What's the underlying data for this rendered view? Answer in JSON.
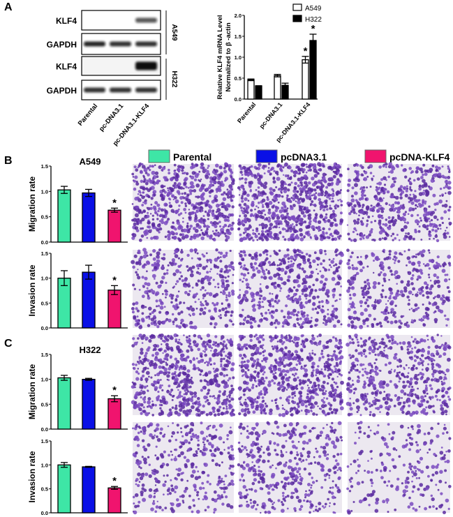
{
  "panel_letters": {
    "a": "A",
    "b": "B",
    "c": "C"
  },
  "colors": {
    "parental": "#3ee6a6",
    "pcdna31": "#0a10e6",
    "pcdna_klf4": "#f0146e",
    "stain": "#6a3aa8"
  },
  "western_blot": {
    "rows": [
      {
        "label": "KLF4",
        "cell_line": "A549",
        "band_intensity": [
          0,
          0,
          0.7
        ]
      },
      {
        "label": "GAPDH",
        "cell_line": "A549",
        "band_intensity": [
          0.9,
          0.85,
          0.85
        ]
      },
      {
        "label": "KLF4",
        "cell_line": "H322",
        "band_intensity": [
          0,
          0,
          1
        ]
      },
      {
        "label": "GAPDH",
        "cell_line": "H322",
        "band_intensity": [
          0.85,
          0.85,
          0.85
        ]
      }
    ],
    "cell_lines": [
      "A549",
      "H322"
    ],
    "lanes": [
      "Parental",
      "pc-DNA3.1",
      "pc-DNA3.1-KLF4"
    ]
  },
  "legend": [
    "Parental",
    "pcDNA3.1",
    "pcDNA-KLF4"
  ],
  "chart_data": [
    {
      "type": "bar",
      "ylabel": "Relative KLF4 mRNA Level\nNormalized to β -actin",
      "categories": [
        "Parental",
        "pc-DNA3.1",
        "pc-DNA3.1-KLF4"
      ],
      "ylim": [
        0,
        2.0
      ],
      "yticks": [
        "0.0",
        "0.5",
        "1.0",
        "1.5",
        "2.0"
      ],
      "legend_position": "top-right",
      "series": [
        {
          "name": "A549",
          "values": [
            0.46,
            0.56,
            0.94
          ],
          "errors": [
            0.02,
            0.03,
            0.08
          ],
          "significance": [
            "",
            "",
            "*"
          ],
          "fill": "#ffffff"
        },
        {
          "name": "H322",
          "values": [
            0.31,
            0.33,
            1.4
          ],
          "errors": [
            0.01,
            0.05,
            0.15
          ],
          "significance": [
            "",
            "",
            "*"
          ],
          "fill": "#000000"
        }
      ]
    },
    {
      "type": "bar",
      "title": "A549",
      "ylabel": "Migration rate",
      "categories": [
        "Parental",
        "pcDNA3.1",
        "pcDNA-KLF4"
      ],
      "values": [
        1.03,
        0.97,
        0.63
      ],
      "errors": [
        0.07,
        0.07,
        0.04
      ],
      "significance": [
        "",
        "",
        "*"
      ],
      "ylim": [
        0,
        1.5
      ],
      "yticks": [
        "0.0",
        "0.5",
        "1.0",
        "1.5"
      ]
    },
    {
      "type": "bar",
      "ylabel": "Invasion rate",
      "categories": [
        "Parental",
        "pcDNA3.1",
        "pcDNA-KLF4"
      ],
      "values": [
        1.0,
        1.12,
        0.76
      ],
      "errors": [
        0.15,
        0.14,
        0.09
      ],
      "significance": [
        "",
        "",
        "*"
      ],
      "ylim": [
        0,
        1.5
      ],
      "yticks": [
        "0.0",
        "0.5",
        "1.0",
        "1.5"
      ]
    },
    {
      "type": "bar",
      "title": "H322",
      "ylabel": "Migration rate",
      "categories": [
        "Parental",
        "pcDNA3.1",
        "pcDNA-KLF4"
      ],
      "values": [
        1.03,
        1.0,
        0.61
      ],
      "errors": [
        0.05,
        0.02,
        0.06
      ],
      "significance": [
        "",
        "",
        "*"
      ],
      "ylim": [
        0,
        1.5
      ],
      "yticks": [
        "0.0",
        "0.5",
        "1.0",
        "1.5"
      ]
    },
    {
      "type": "bar",
      "ylabel": "Invasion rate",
      "categories": [
        "Parental",
        "pcDNA3.1",
        "pcDNA-KLF4"
      ],
      "values": [
        1.0,
        0.96,
        0.52
      ],
      "errors": [
        0.05,
        0.01,
        0.03
      ],
      "significance": [
        "",
        "",
        "*"
      ],
      "ylim": [
        0,
        1.5
      ],
      "yticks": [
        "0.0",
        "0.5",
        "1.0",
        "1.5"
      ]
    }
  ],
  "micrographs": {
    "density": [
      [
        0.75,
        0.85,
        0.55
      ],
      [
        0.45,
        0.55,
        0.4
      ],
      [
        0.7,
        0.75,
        0.55
      ],
      [
        0.4,
        0.45,
        0.25
      ]
    ]
  }
}
